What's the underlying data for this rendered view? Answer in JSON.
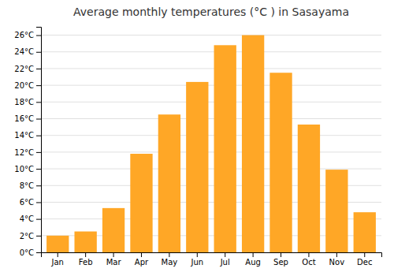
{
  "chart_data": {
    "type": "bar",
    "title": "Average monthly temperatures (°C ) in Sasayama",
    "categories": [
      "Jan",
      "Feb",
      "Mar",
      "Apr",
      "May",
      "Jun",
      "Jul",
      "Aug",
      "Sep",
      "Oct",
      "Nov",
      "Dec"
    ],
    "values": [
      2.0,
      2.5,
      5.3,
      11.8,
      16.5,
      20.4,
      24.8,
      26.0,
      21.5,
      15.3,
      9.9,
      4.8
    ],
    "color": "#FFA726",
    "ylim": [
      0,
      27
    ],
    "yticks": [
      {
        "value": 0,
        "label": "0°C"
      },
      {
        "value": 2,
        "label": "2°C"
      },
      {
        "value": 4,
        "label": "4°C"
      },
      {
        "value": 6,
        "label": "6°C"
      },
      {
        "value": 8,
        "label": "8°C"
      },
      {
        "value": 10,
        "label": "10°C"
      },
      {
        "value": 12,
        "label": "12°C"
      },
      {
        "value": 14,
        "label": "14°C"
      },
      {
        "value": 16,
        "label": "16°C"
      },
      {
        "value": 18,
        "label": "18°C"
      },
      {
        "value": 20,
        "label": "20°C"
      },
      {
        "value": 22,
        "label": "22°C"
      },
      {
        "value": 24,
        "label": "24°C"
      },
      {
        "value": 26,
        "label": "26°C"
      }
    ],
    "grid": true
  }
}
